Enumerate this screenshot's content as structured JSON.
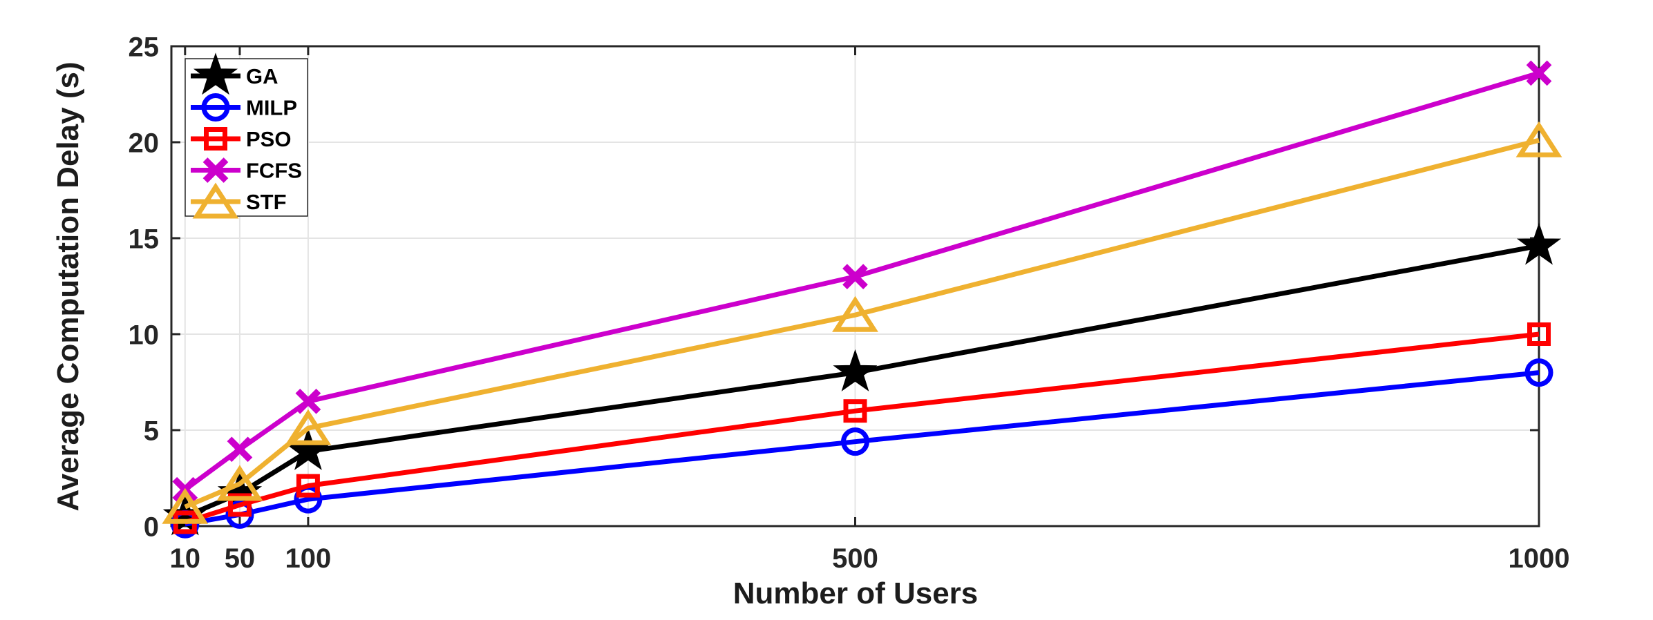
{
  "chart_data": {
    "type": "line",
    "title": "",
    "xlabel": "Number of Users",
    "ylabel": "Average Computation Delay (s)",
    "x": [
      10,
      50,
      100,
      500,
      1000
    ],
    "xlim": [
      0,
      1000
    ],
    "ylim": [
      0,
      25
    ],
    "xtick_labels": [
      "10",
      "50",
      "100",
      "500",
      "1000"
    ],
    "yticks": [
      0,
      5,
      10,
      15,
      20,
      25
    ],
    "ytick_labels": [
      "0",
      "5",
      "10",
      "15",
      "20",
      "25"
    ],
    "grid": "on",
    "legend_position": "top-left",
    "background_color": "#FFFFFF",
    "axis_color": "#262626",
    "grid_color": "#E4E4E4",
    "series": [
      {
        "name": "GA",
        "color": "#000000",
        "marker": "star",
        "values": [
          0.5,
          1.7,
          3.9,
          8.0,
          14.6
        ]
      },
      {
        "name": "MILP",
        "color": "#0000FF",
        "marker": "circle",
        "values": [
          0.1,
          0.6,
          1.4,
          4.4,
          8.0
        ]
      },
      {
        "name": "PSO",
        "color": "#FF0000",
        "marker": "square",
        "values": [
          0.2,
          1.1,
          2.1,
          6.0,
          10.0
        ]
      },
      {
        "name": "FCFS",
        "color": "#CC00CC",
        "marker": "x",
        "values": [
          1.9,
          4.0,
          6.5,
          13.0,
          23.6
        ]
      },
      {
        "name": "STF",
        "color": "#EFB130",
        "marker": "triangle",
        "values": [
          1.0,
          2.2,
          5.1,
          11.0,
          20.1
        ]
      }
    ]
  }
}
